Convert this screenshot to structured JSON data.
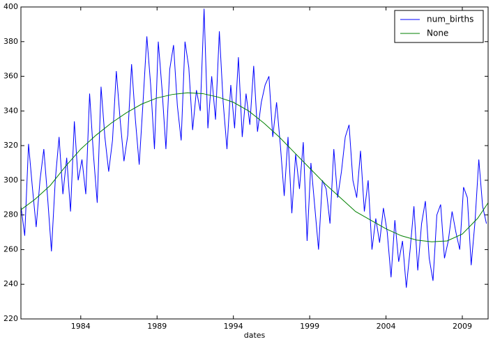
{
  "chart_data": {
    "type": "line",
    "xlabel": "dates",
    "legend": "upper right",
    "xlim": [
      1980.08,
      2010.69
    ],
    "ylim": [
      220,
      400
    ],
    "xticks": [
      1984,
      1989,
      1994,
      1999,
      2004,
      2009
    ],
    "yticks": [
      220,
      240,
      260,
      280,
      300,
      320,
      340,
      360,
      380,
      400
    ],
    "series": [
      {
        "name": "num_births",
        "color": "#0000ff",
        "x": [
          1980.08,
          1980.33,
          1980.58,
          1980.83,
          1981.08,
          1981.33,
          1981.58,
          1981.83,
          1982.08,
          1982.33,
          1982.58,
          1982.83,
          1983.08,
          1983.33,
          1983.58,
          1983.83,
          1984.08,
          1984.33,
          1984.58,
          1984.83,
          1985.08,
          1985.33,
          1985.58,
          1985.83,
          1986.08,
          1986.33,
          1986.58,
          1986.83,
          1987.08,
          1987.33,
          1987.58,
          1987.83,
          1988.08,
          1988.33,
          1988.58,
          1988.83,
          1989.08,
          1989.33,
          1989.58,
          1989.83,
          1990.08,
          1990.33,
          1990.58,
          1990.83,
          1991.08,
          1991.33,
          1991.58,
          1991.83,
          1992.08,
          1992.33,
          1992.58,
          1992.83,
          1993.08,
          1993.33,
          1993.58,
          1993.83,
          1994.08,
          1994.33,
          1994.58,
          1994.83,
          1995.08,
          1995.33,
          1995.58,
          1995.83,
          1996.08,
          1996.33,
          1996.58,
          1996.83,
          1997.08,
          1997.33,
          1997.58,
          1997.83,
          1998.08,
          1998.33,
          1998.58,
          1998.83,
          1999.08,
          1999.33,
          1999.58,
          1999.83,
          2000.08,
          2000.33,
          2000.58,
          2000.83,
          2001.08,
          2001.33,
          2001.58,
          2001.83,
          2002.08,
          2002.33,
          2002.58,
          2002.83,
          2003.08,
          2003.33,
          2003.58,
          2003.83,
          2004.08,
          2004.33,
          2004.58,
          2004.83,
          2005.08,
          2005.33,
          2005.58,
          2005.83,
          2006.08,
          2006.33,
          2006.58,
          2006.83,
          2007.08,
          2007.33,
          2007.58,
          2007.83,
          2008.08,
          2008.33,
          2008.58,
          2008.83,
          2009.08,
          2009.33,
          2009.58,
          2009.83,
          2010.08,
          2010.33,
          2010.58
        ],
        "values": [
          285,
          268,
          321,
          296,
          273,
          300,
          318,
          290,
          259,
          300,
          325,
          292,
          313,
          282,
          334,
          300,
          312,
          292,
          350,
          315,
          287,
          354,
          325,
          305,
          323,
          363,
          335,
          311,
          326,
          367,
          335,
          309,
          345,
          383,
          355,
          318,
          380,
          352,
          318,
          364,
          378,
          343,
          323,
          380,
          365,
          329,
          352,
          340,
          399,
          330,
          360,
          335,
          386,
          345,
          318,
          355,
          330,
          371,
          325,
          350,
          332,
          366,
          328,
          345,
          355,
          360,
          325,
          345,
          320,
          291,
          325,
          281,
          315,
          295,
          322,
          265,
          310,
          285,
          260,
          300,
          295,
          275,
          318,
          290,
          305,
          325,
          332,
          300,
          290,
          317,
          282,
          300,
          260,
          278,
          264,
          284,
          270,
          244,
          277,
          253,
          265,
          238,
          260,
          285,
          248,
          275,
          288,
          255,
          242,
          280,
          286,
          255,
          265,
          282,
          270,
          260,
          296,
          290,
          251,
          276,
          312,
          285,
          275
        ]
      },
      {
        "name": "None",
        "color": "#008000",
        "x": [
          1980.08,
          1981,
          1982,
          1983,
          1984,
          1985,
          1986,
          1987,
          1988,
          1989,
          1990,
          1991,
          1992,
          1993,
          1994,
          1995,
          1996,
          1997,
          1998,
          1999,
          2000,
          2001,
          2002,
          2003,
          2004,
          2005,
          2006,
          2007,
          2008,
          2009,
          2010,
          2010.69
        ],
        "values": [
          283,
          289,
          297,
          308,
          318,
          326,
          333,
          339,
          344,
          347.5,
          349.5,
          350.5,
          350,
          348,
          345,
          340,
          333,
          325,
          316,
          307,
          298,
          290,
          282,
          277,
          272,
          268,
          265.5,
          264.5,
          265,
          269,
          278,
          287
        ]
      }
    ]
  }
}
